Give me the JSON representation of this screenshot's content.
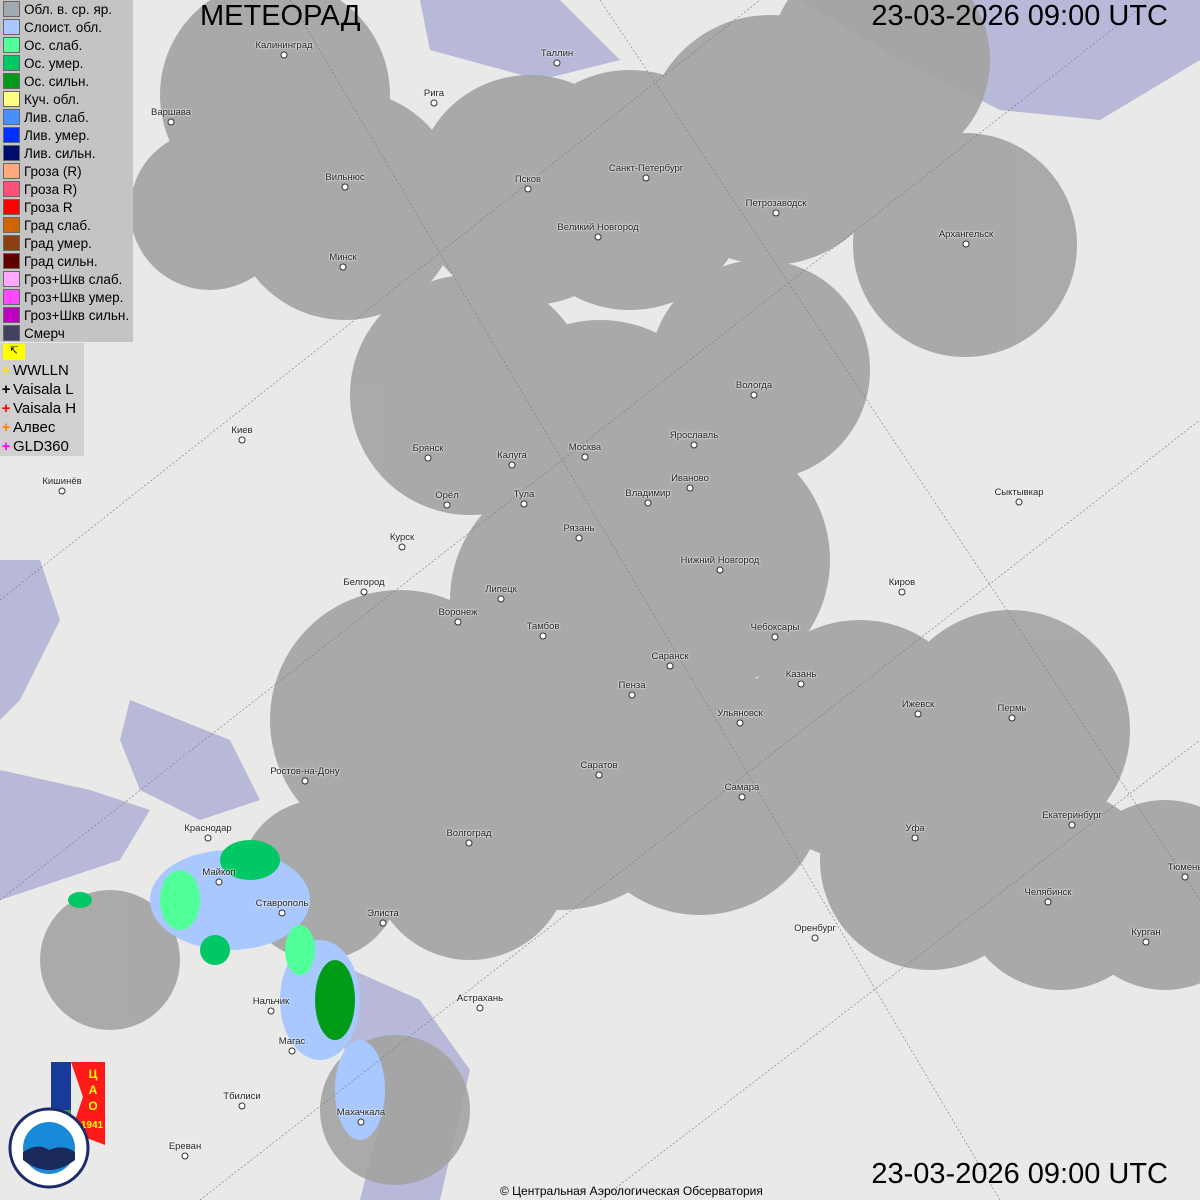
{
  "header": {
    "title": "МЕТЕОРАД",
    "timestamp": "23-03-2026  09:00 UTC"
  },
  "footer": {
    "copyright": "© Центральная Аэрологическая Обсерватория",
    "timestamp": "23-03-2026  09:00 UTC"
  },
  "legend": [
    {
      "label": "Обл. в. ср. яр.",
      "color": "#a0aab0"
    },
    {
      "label": "Слоист. обл.",
      "color": "#a8c8ff"
    },
    {
      "label": "Ос. слаб.",
      "color": "#50ff98"
    },
    {
      "label": "Ос. умер.",
      "color": "#00c864"
    },
    {
      "label": "Ос. сильн.",
      "color": "#009c18"
    },
    {
      "label": "Куч. обл.",
      "color": "#ffff80"
    },
    {
      "label": "Лив. слаб.",
      "color": "#4890ff"
    },
    {
      "label": "Лив. умер.",
      "color": "#0030ff"
    },
    {
      "label": "Лив. сильн.",
      "color": "#000c70"
    },
    {
      "label": "Гроза (R)",
      "color": "#ffa880"
    },
    {
      "label": "Гроза R)",
      "color": "#ff5078"
    },
    {
      "label": "Гроза R",
      "color": "#ff0000"
    },
    {
      "label": "Град слаб.",
      "color": "#d06400"
    },
    {
      "label": "Град умер.",
      "color": "#8c4010"
    },
    {
      "label": "Град сильн.",
      "color": "#600000"
    },
    {
      "label": "Гроз+Шкв слаб.",
      "color": "#ffa8ff"
    },
    {
      "label": "Гроз+Шкв умер.",
      "color": "#ff48ff"
    },
    {
      "label": "Гроз+Шкв сильн.",
      "color": "#c000c0"
    },
    {
      "label": "Смерч",
      "color": "#404060"
    }
  ],
  "lightning": [
    {
      "label": "WWLLN",
      "color": "#ffe000"
    },
    {
      "label": "Vaisala L",
      "color": "#000000"
    },
    {
      "label": "Vaisala H",
      "color": "#ff0000"
    },
    {
      "label": "Алвес",
      "color": "#ff8000"
    },
    {
      "label": "GLD360",
      "color": "#ff00ff"
    }
  ],
  "logos": {
    "tsao": "ЦАО 1941",
    "roshydromet": "РОСГИДРОМЕТ ROSHYDROMET"
  },
  "cities": [
    "Калининград",
    "Таллин",
    "Рига",
    "Варшава",
    "Санкт-Петербург",
    "Псков",
    "Вильнюс",
    "Петрозаводск",
    "Великий Новгород",
    "Архангельск",
    "Минск",
    "Вологда",
    "Киев",
    "Брянск",
    "Калуга",
    "Москва",
    "Ярославль",
    "Иваново",
    "Кишинёв",
    "Орёл",
    "Тула",
    "Владимир",
    "Сыктывкар",
    "Рязань",
    "Курск",
    "Нижний Новгород",
    "Белгород",
    "Киров",
    "Липецк",
    "Воронеж",
    "Тамбов",
    "Чебоксары",
    "Саранск",
    "Казань",
    "Пенза",
    "Ижевск",
    "Пермь",
    "Ульяновск",
    "Ростов-на-Дону",
    "Саратов",
    "Самара",
    "Краснодар",
    "Уфа",
    "Екатеринбург",
    "Волгоград",
    "Майкоп",
    "Ставрополь",
    "Челябинск",
    "Элиста",
    "Оренбург",
    "Курган",
    "Астрахань",
    "Нальчик",
    "Магас",
    "Тбилиси",
    "Махачкала",
    "Ереван",
    "Тюмень"
  ]
}
